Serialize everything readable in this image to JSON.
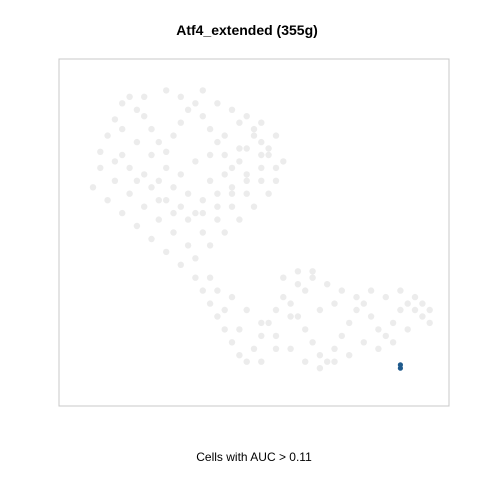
{
  "chart_data": {
    "type": "scatter",
    "title": "Atf4_extended (355g)",
    "xlabel": "Cells with AUC > 0.11",
    "ylabel": "",
    "xlim": [
      0,
      100
    ],
    "ylim": [
      0,
      100
    ],
    "axes_ticks": false,
    "grid": false,
    "legend": "none",
    "colors": {
      "background_cells": "#e6e6e6",
      "highlighted_cells": "#1f5a8c",
      "frame": "#c8c8c8"
    },
    "series": [
      {
        "role": "all-cells",
        "values": [
          [
            10,
            80
          ],
          [
            12,
            85
          ],
          [
            14,
            90
          ],
          [
            16,
            92
          ],
          [
            18,
            88
          ],
          [
            20,
            86
          ],
          [
            22,
            82
          ],
          [
            24,
            78
          ],
          [
            26,
            75
          ],
          [
            28,
            80
          ],
          [
            30,
            84
          ],
          [
            32,
            88
          ],
          [
            34,
            90
          ],
          [
            36,
            86
          ],
          [
            38,
            82
          ],
          [
            40,
            78
          ],
          [
            42,
            74
          ],
          [
            44,
            70
          ],
          [
            46,
            72
          ],
          [
            48,
            76
          ],
          [
            50,
            80
          ],
          [
            52,
            78
          ],
          [
            54,
            74
          ],
          [
            56,
            70
          ],
          [
            52,
            66
          ],
          [
            48,
            62
          ],
          [
            44,
            58
          ],
          [
            40,
            54
          ],
          [
            36,
            50
          ],
          [
            32,
            46
          ],
          [
            28,
            50
          ],
          [
            24,
            54
          ],
          [
            20,
            58
          ],
          [
            16,
            62
          ],
          [
            12,
            66
          ],
          [
            8,
            70
          ],
          [
            6,
            64
          ],
          [
            10,
            60
          ],
          [
            14,
            56
          ],
          [
            18,
            52
          ],
          [
            22,
            48
          ],
          [
            26,
            44
          ],
          [
            30,
            40
          ],
          [
            34,
            42
          ],
          [
            38,
            46
          ],
          [
            42,
            50
          ],
          [
            46,
            54
          ],
          [
            50,
            58
          ],
          [
            54,
            62
          ],
          [
            56,
            66
          ],
          [
            8,
            75
          ],
          [
            12,
            72
          ],
          [
            16,
            70
          ],
          [
            20,
            68
          ],
          [
            24,
            66
          ],
          [
            28,
            64
          ],
          [
            32,
            62
          ],
          [
            36,
            60
          ],
          [
            40,
            62
          ],
          [
            44,
            64
          ],
          [
            48,
            66
          ],
          [
            52,
            70
          ],
          [
            18,
            78
          ],
          [
            22,
            74
          ],
          [
            26,
            70
          ],
          [
            30,
            68
          ],
          [
            34,
            72
          ],
          [
            38,
            74
          ],
          [
            42,
            80
          ],
          [
            46,
            84
          ],
          [
            14,
            82
          ],
          [
            20,
            92
          ],
          [
            26,
            94
          ],
          [
            30,
            92
          ],
          [
            36,
            94
          ],
          [
            40,
            90
          ],
          [
            44,
            88
          ],
          [
            48,
            86
          ],
          [
            52,
            84
          ],
          [
            56,
            80
          ],
          [
            34,
            36
          ],
          [
            36,
            32
          ],
          [
            38,
            28
          ],
          [
            40,
            24
          ],
          [
            42,
            20
          ],
          [
            44,
            16
          ],
          [
            46,
            12
          ],
          [
            48,
            10
          ],
          [
            50,
            14
          ],
          [
            52,
            18
          ],
          [
            54,
            22
          ],
          [
            56,
            26
          ],
          [
            58,
            30
          ],
          [
            60,
            28
          ],
          [
            62,
            24
          ],
          [
            64,
            20
          ],
          [
            66,
            16
          ],
          [
            68,
            12
          ],
          [
            70,
            10
          ],
          [
            72,
            14
          ],
          [
            74,
            18
          ],
          [
            76,
            22
          ],
          [
            78,
            26
          ],
          [
            80,
            28
          ],
          [
            82,
            24
          ],
          [
            84,
            20
          ],
          [
            86,
            18
          ],
          [
            88,
            22
          ],
          [
            90,
            26
          ],
          [
            92,
            28
          ],
          [
            94,
            26
          ],
          [
            96,
            24
          ],
          [
            98,
            22
          ],
          [
            92,
            20
          ],
          [
            88,
            16
          ],
          [
            84,
            14
          ],
          [
            80,
            16
          ],
          [
            76,
            12
          ],
          [
            72,
            10
          ],
          [
            68,
            8
          ],
          [
            64,
            10
          ],
          [
            60,
            14
          ],
          [
            56,
            18
          ],
          [
            52,
            22
          ],
          [
            48,
            26
          ],
          [
            44,
            30
          ],
          [
            40,
            32
          ],
          [
            62,
            34
          ],
          [
            66,
            36
          ],
          [
            70,
            34
          ],
          [
            74,
            32
          ],
          [
            78,
            30
          ],
          [
            86,
            30
          ],
          [
            90,
            32
          ],
          [
            94,
            30
          ],
          [
            96,
            28
          ],
          [
            98,
            26
          ],
          [
            82,
            32
          ],
          [
            72,
            28
          ],
          [
            68,
            26
          ],
          [
            58,
            36
          ],
          [
            62,
            38
          ],
          [
            66,
            38
          ],
          [
            64,
            32
          ],
          [
            60,
            24
          ],
          [
            56,
            14
          ],
          [
            52,
            10
          ],
          [
            46,
            20
          ],
          [
            42,
            26
          ],
          [
            38,
            36
          ],
          [
            24,
            60
          ],
          [
            28,
            56
          ],
          [
            32,
            54
          ],
          [
            36,
            56
          ],
          [
            40,
            58
          ],
          [
            44,
            62
          ],
          [
            48,
            68
          ],
          [
            52,
            74
          ],
          [
            14,
            74
          ],
          [
            18,
            66
          ],
          [
            22,
            64
          ],
          [
            26,
            60
          ],
          [
            30,
            58
          ],
          [
            34,
            56
          ],
          [
            38,
            66
          ],
          [
            42,
            68
          ],
          [
            46,
            76
          ],
          [
            50,
            82
          ],
          [
            54,
            76
          ],
          [
            58,
            72
          ]
        ]
      },
      {
        "role": "cells-with-auc-above-threshold",
        "values": [
          [
            90,
            9
          ],
          [
            90,
            8
          ]
        ]
      }
    ]
  }
}
